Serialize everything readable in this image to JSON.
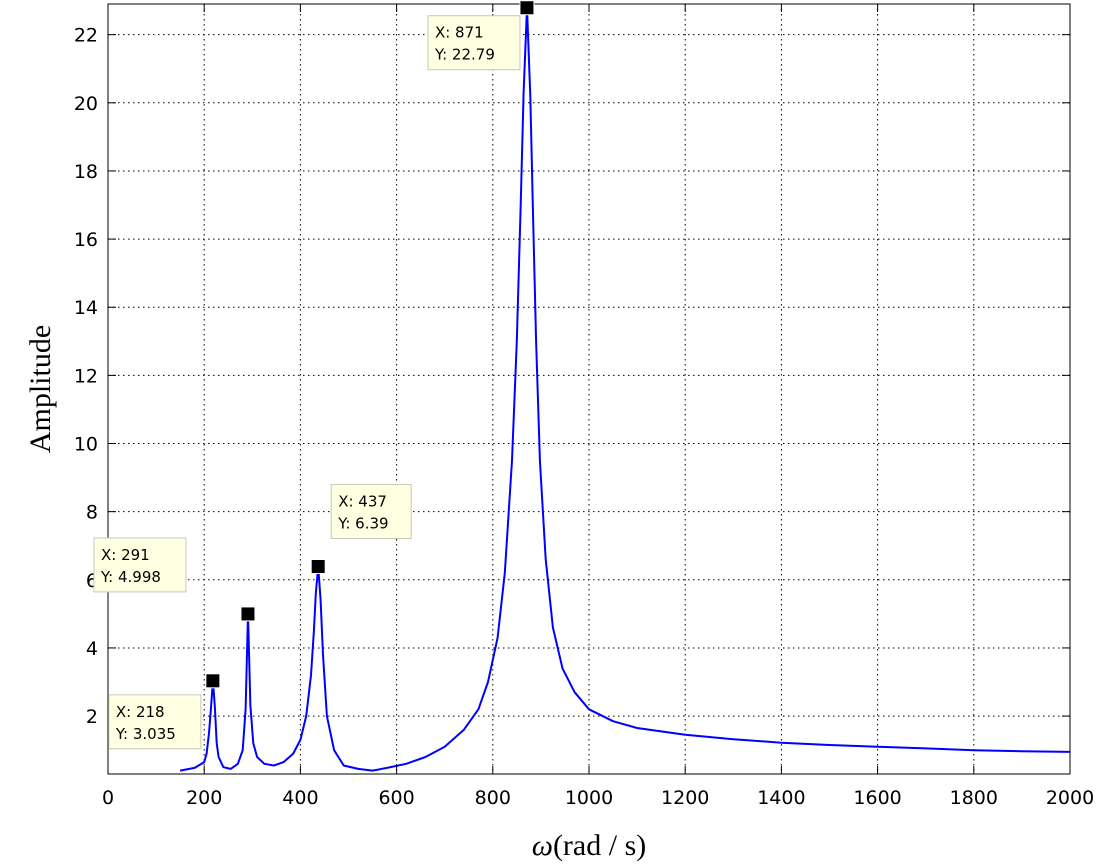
{
  "chart_data": {
    "type": "line",
    "title": "",
    "xlabel_symbol": "ω",
    "xlabel_units": "(rad / s)",
    "ylabel": "Amplitude",
    "xlim": [
      0,
      2000
    ],
    "ylim": [
      0.3,
      22.9
    ],
    "x_ticks": [
      0,
      200,
      400,
      600,
      800,
      1000,
      1200,
      1400,
      1600,
      1800,
      2000
    ],
    "y_ticks": [
      2,
      4,
      6,
      8,
      10,
      12,
      14,
      16,
      18,
      20,
      22
    ],
    "grid": true,
    "grid_style": "dotted",
    "line_color": "#0000ff",
    "series": [
      {
        "x": [
          150,
          180,
          200,
          205,
          210,
          214,
          218,
          222,
          226,
          230,
          240,
          255,
          270,
          280,
          286,
          291,
          296,
          302,
          310,
          325,
          345,
          365,
          385,
          400,
          412,
          422,
          428,
          432,
          437,
          442,
          447,
          455,
          470,
          490,
          520,
          550,
          580,
          620,
          660,
          700,
          740,
          770,
          790,
          810,
          825,
          840,
          850,
          858,
          864,
          871,
          878,
          884,
          890,
          898,
          910,
          925,
          945,
          970,
          1000,
          1050,
          1100,
          1200,
          1300,
          1400,
          1500,
          1600,
          1700,
          1800,
          1900,
          2000
        ],
        "y": [
          0.4,
          0.48,
          0.65,
          0.9,
          1.5,
          2.2,
          3.035,
          2.3,
          1.2,
          0.8,
          0.5,
          0.45,
          0.6,
          1.0,
          2.2,
          4.998,
          2.3,
          1.2,
          0.8,
          0.6,
          0.55,
          0.65,
          0.9,
          1.3,
          2.0,
          3.2,
          4.5,
          5.6,
          6.39,
          5.4,
          3.8,
          2.0,
          1.0,
          0.55,
          0.45,
          0.4,
          0.48,
          0.6,
          0.8,
          1.1,
          1.6,
          2.2,
          3.0,
          4.3,
          6.2,
          9.5,
          13.0,
          17.0,
          20.3,
          22.79,
          20.2,
          16.5,
          13.0,
          9.5,
          6.6,
          4.6,
          3.4,
          2.7,
          2.2,
          1.85,
          1.65,
          1.45,
          1.32,
          1.22,
          1.15,
          1.1,
          1.05,
          1.0,
          0.97,
          0.95
        ]
      }
    ],
    "data_tips": [
      {
        "x": 218,
        "y": 3.035,
        "label_x": "X: 218",
        "label_y": "Y: 3.035"
      },
      {
        "x": 291,
        "y": 4.998,
        "label_x": "X: 291",
        "label_y": "Y: 4.998"
      },
      {
        "x": 437,
        "y": 6.39,
        "label_x": "X: 437",
        "label_y": "Y: 6.39"
      },
      {
        "x": 871,
        "y": 22.79,
        "label_x": "X: 871",
        "label_y": "Y: 22.79"
      }
    ]
  }
}
